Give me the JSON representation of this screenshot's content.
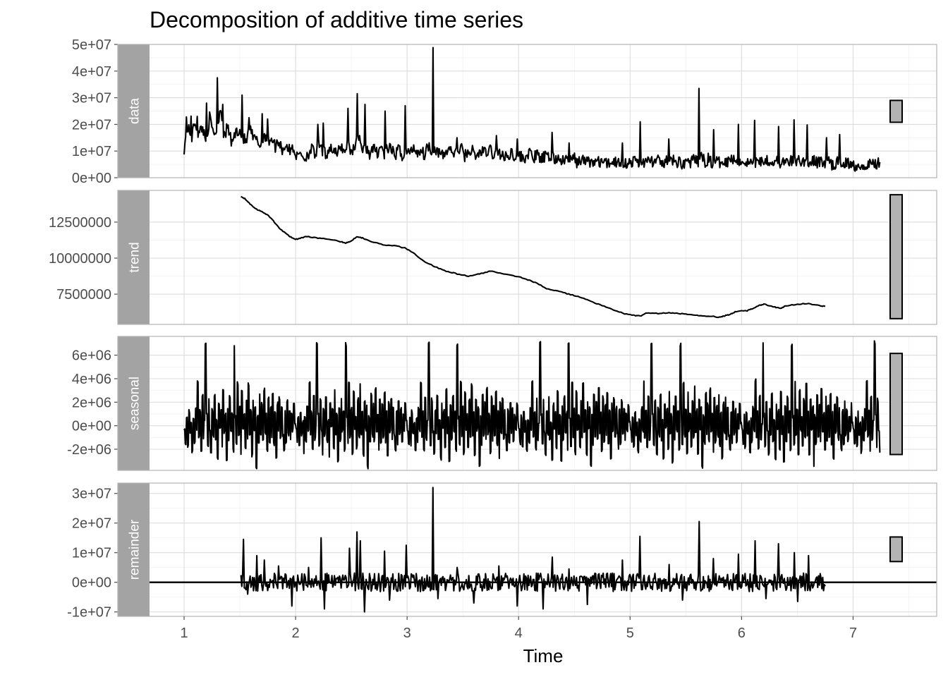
{
  "chart_data": {
    "type": "line",
    "title": "Decomposition of additive time series",
    "xlabel": "Time",
    "ylabel": "",
    "grid": true,
    "x_ticks": [
      "1",
      "2",
      "3",
      "4",
      "5",
      "6",
      "7"
    ],
    "xlim": [
      0.69,
      7.75
    ],
    "line_color": "#000000",
    "strip_color": "#a3a3a3",
    "panels": [
      {
        "name": "data",
        "ylim": [
          0,
          50000000
        ],
        "y_ticks": [
          0,
          10000000,
          20000000,
          30000000,
          40000000,
          50000000
        ],
        "y_tick_labels": [
          "0e+00",
          "1e+07",
          "2e+07",
          "3e+07",
          "4e+07",
          "5e+07"
        ],
        "scale_bar": [
          20800000,
          29000000
        ],
        "series": {
          "x_start": 1.0,
          "x_end": 7.24,
          "values": [
            10500000,
            18500000,
            14000000,
            21000000,
            15500000,
            19000000,
            13000000,
            22000000,
            16000000,
            17500000,
            26500000,
            14500000,
            19000000,
            12500000,
            16000000,
            17800000,
            15000000,
            12800000,
            18000000,
            14200000,
            13500000,
            11500000,
            16500000,
            12800000,
            14800000,
            11200000,
            13500000,
            10000000,
            12000000,
            9500000,
            11000000,
            7000000,
            9500000,
            6500000,
            8500000,
            10500000,
            7800000,
            12000000,
            9500000,
            8200000,
            11200000,
            9800000,
            7800000,
            11800000,
            9200000,
            13000000,
            8800000,
            12500000,
            15800000,
            9500000,
            11000000,
            8500000,
            10200000,
            9000000,
            11500000,
            8200000,
            10800000,
            9500000,
            8000000,
            10500000,
            7500000,
            9800000,
            8500000,
            11200000,
            9000000,
            10000000,
            8200000,
            12000000,
            9500000,
            10500000,
            8800000,
            7500000,
            9200000,
            11000000,
            8000000,
            9500000,
            10800000,
            7800000,
            9000000,
            10200000,
            7200000,
            8800000,
            9800000,
            8200000,
            10500000,
            7800000,
            9200000,
            8500000,
            6800000,
            8000000,
            9200000,
            7500000,
            8200000,
            6500000,
            7800000,
            8800000,
            7000000,
            8200000,
            6200000,
            7500000,
            6800000,
            8000000,
            6000000,
            7200000,
            5500000,
            6800000,
            5800000,
            7000000,
            5200000,
            6500000,
            5500000,
            6200000,
            4800000,
            6000000,
            5200000,
            5800000,
            4500000,
            5500000,
            6000000,
            5000000,
            5800000,
            4800000,
            5500000,
            5200000,
            6200000,
            4700000,
            5800000,
            5000000,
            6500000,
            5300000,
            5900000,
            4600000,
            5700000,
            5100000,
            6400000,
            5000000,
            5600000,
            4800000,
            5900000,
            5300000,
            6100000,
            5400000,
            7200000,
            5600000,
            6700000,
            5100000,
            6300000,
            4900000,
            6800000,
            5500000,
            7400000,
            5800000,
            6500000,
            5200000,
            6000000,
            4800000,
            5700000,
            5200000,
            6300000,
            5600000,
            6900000,
            5000000,
            5800000,
            6200000,
            4600000,
            5500000,
            4900000,
            6100000,
            5300000,
            6600000,
            5000000,
            6400000,
            4700000,
            5800000,
            5100000,
            6200000,
            4800000,
            5600000,
            4200000,
            5300000,
            4700000,
            5900000,
            4400000,
            5200000,
            4000000,
            5000000,
            3800000,
            4900000,
            4300000,
            5500000,
            4500000,
            6000000
          ],
          "spikes": [
            [
              1.02,
              22800000
            ],
            [
              1.06,
              23100000
            ],
            [
              1.12,
              23000000
            ],
            [
              1.2,
              28000000
            ],
            [
              1.3,
              37500000
            ],
            [
              1.35,
              27500000
            ],
            [
              1.52,
              31000000
            ],
            [
              1.58,
              22500000
            ],
            [
              1.7,
              24000000
            ],
            [
              1.75,
              22000000
            ],
            [
              2.2,
              20000000
            ],
            [
              2.25,
              20500000
            ],
            [
              2.47,
              26000000
            ],
            [
              2.55,
              31500000
            ],
            [
              2.62,
              27500000
            ],
            [
              2.8,
              25000000
            ],
            [
              2.98,
              27000000
            ],
            [
              3.23,
              48800000
            ],
            [
              3.45,
              15000000
            ],
            [
              3.8,
              15800000
            ],
            [
              3.99,
              14500000
            ],
            [
              4.3,
              17000000
            ],
            [
              4.45,
              13000000
            ],
            [
              4.93,
              13000000
            ],
            [
              5.09,
              21000000
            ],
            [
              5.35,
              14500000
            ],
            [
              5.62,
              33500000
            ],
            [
              5.75,
              18000000
            ],
            [
              5.97,
              20000000
            ],
            [
              6.12,
              21500000
            ],
            [
              6.33,
              19200000
            ],
            [
              6.47,
              21700000
            ],
            [
              6.59,
              19800000
            ],
            [
              6.76,
              15000000
            ],
            [
              6.88,
              16200000
            ]
          ]
        }
      },
      {
        "name": "trend",
        "ylim": [
          5400000,
          14700000
        ],
        "y_ticks": [
          7500000,
          10000000,
          12500000
        ],
        "y_tick_labels": [
          "7500000",
          "10000000",
          "12500000"
        ],
        "scale_bar": [
          5800000,
          14400000
        ],
        "series": {
          "x": [
            1.51,
            1.55,
            1.6,
            1.65,
            1.7,
            1.75,
            1.8,
            1.85,
            1.9,
            1.95,
            2.0,
            2.05,
            2.1,
            2.2,
            2.3,
            2.4,
            2.45,
            2.5,
            2.55,
            2.6,
            2.7,
            2.8,
            2.9,
            2.98,
            3.05,
            3.15,
            3.25,
            3.35,
            3.45,
            3.55,
            3.65,
            3.75,
            3.85,
            3.95,
            4.05,
            4.15,
            4.25,
            4.35,
            4.45,
            4.55,
            4.65,
            4.75,
            4.85,
            4.95,
            5.05,
            5.1,
            5.15,
            5.25,
            5.35,
            5.45,
            5.55,
            5.65,
            5.75,
            5.8,
            5.85,
            5.9,
            5.95,
            6.05,
            6.1,
            6.15,
            6.2,
            6.3,
            6.35,
            6.4,
            6.5,
            6.6,
            6.7,
            6.75
          ],
          "values": [
            14300000,
            14100000,
            13700000,
            13400000,
            13200000,
            13000000,
            12600000,
            12100000,
            11800000,
            11500000,
            11300000,
            11400000,
            11500000,
            11400000,
            11300000,
            11150000,
            11050000,
            11200000,
            11500000,
            11400000,
            11100000,
            10900000,
            10850000,
            10700000,
            10400000,
            9800000,
            9400000,
            9100000,
            8900000,
            8750000,
            8900000,
            9100000,
            8950000,
            8800000,
            8600000,
            8300000,
            7900000,
            7700000,
            7500000,
            7300000,
            7000000,
            6700000,
            6400000,
            6150000,
            6000000,
            6000000,
            6200000,
            6150000,
            6200000,
            6150000,
            6050000,
            6000000,
            5950000,
            5900000,
            6000000,
            6100000,
            6300000,
            6350000,
            6500000,
            6700000,
            6800000,
            6600000,
            6500000,
            6700000,
            6800000,
            6850000,
            6700000,
            6650000
          ]
        }
      },
      {
        "name": "seasonal",
        "ylim": [
          -3800000,
          7600000
        ],
        "y_ticks": [
          -2000000,
          0,
          2000000,
          4000000,
          6000000
        ],
        "y_tick_labels": [
          "-2e+06",
          "0e+00",
          "2e+06",
          "4e+06",
          "6e+06"
        ],
        "scale_bar": [
          -2450000,
          6150000
        ],
        "series": {
          "x_start": 1.0,
          "x_end": 7.24,
          "period": 1.0,
          "pattern": [
            -300000,
            -1500000,
            800000,
            -1800000,
            1200000,
            -700000,
            300000,
            -2200000,
            600000,
            -1400000,
            1500000,
            -400000,
            3800000,
            -900000,
            1200000,
            -2000000,
            2500000,
            -1100000,
            300000,
            7100000,
            900000,
            -1700000,
            2200000,
            -500000,
            -2400000,
            1400000,
            -800000,
            2600000,
            -1300000,
            400000,
            -2800000,
            1800000,
            -200000,
            1300000,
            -1900000,
            3000000,
            -600000,
            900000,
            -3000000,
            1600000,
            -1200000,
            2400000,
            -500000,
            1100000,
            -2100000,
            6900000,
            700000,
            -1600000,
            3600000,
            -900000,
            1500000,
            -2300000,
            2900000,
            -400000,
            900000,
            -1800000,
            2200000,
            -1000000,
            3500000,
            -700000,
            1300000,
            -2500000,
            2100000,
            -300000,
            1600000,
            -3500000,
            800000,
            -1500000,
            2700000,
            -800000,
            1900000,
            -1200000,
            3100000,
            -600000,
            1000000,
            -2200000,
            2400000,
            -1400000,
            1700000,
            -900000,
            2800000,
            -1600000,
            1200000,
            -2700000,
            1900000,
            -500000,
            2300000,
            -1100000,
            1500000,
            -800000,
            -2000000,
            1300000,
            -1500000,
            2100000,
            -700000,
            1400000,
            -1300000,
            900000,
            -400000,
            1800000,
            300000
          ]
        }
      },
      {
        "name": "remainder",
        "ylim": [
          -11500000,
          33500000
        ],
        "y_ticks": [
          -10000000,
          0,
          10000000,
          20000000,
          30000000
        ],
        "y_tick_labels": [
          "-1e+07",
          "0e+00",
          "1e+07",
          "2e+07",
          "3e+07"
        ],
        "zero_line": 0,
        "scale_bar": [
          7000000,
          15300000
        ],
        "series": {
          "x_start": 1.51,
          "x_end": 6.75,
          "spikes": [
            [
              1.53,
              14500000
            ],
            [
              1.57,
              -4000000
            ],
            [
              1.65,
              9000000
            ],
            [
              1.72,
              7500000
            ],
            [
              1.85,
              5500000
            ],
            [
              1.97,
              -8000000
            ],
            [
              2.12,
              5000000
            ],
            [
              2.23,
              15000000
            ],
            [
              2.26,
              -9000000
            ],
            [
              2.48,
              11500000
            ],
            [
              2.55,
              17000000
            ],
            [
              2.58,
              14000000
            ],
            [
              2.62,
              -10000000
            ],
            [
              2.8,
              10500000
            ],
            [
              2.84,
              -6000000
            ],
            [
              2.99,
              12500000
            ],
            [
              3.23,
              32000000
            ],
            [
              3.28,
              -5500000
            ],
            [
              3.45,
              5000000
            ],
            [
              3.6,
              -7000000
            ],
            [
              3.82,
              5500000
            ],
            [
              3.99,
              -8000000
            ],
            [
              4.22,
              -9000000
            ],
            [
              4.3,
              8500000
            ],
            [
              4.45,
              4500000
            ],
            [
              4.62,
              -7500000
            ],
            [
              4.93,
              7500000
            ],
            [
              5.09,
              15500000
            ],
            [
              5.35,
              6000000
            ],
            [
              5.47,
              -6000000
            ],
            [
              5.62,
              20500000
            ],
            [
              5.75,
              8000000
            ],
            [
              5.97,
              9500000
            ],
            [
              6.12,
              14000000
            ],
            [
              6.22,
              -5500000
            ],
            [
              6.33,
              13000000
            ],
            [
              6.47,
              10000000
            ],
            [
              6.5,
              -6500000
            ],
            [
              6.6,
              9000000
            ]
          ]
        }
      }
    ]
  }
}
